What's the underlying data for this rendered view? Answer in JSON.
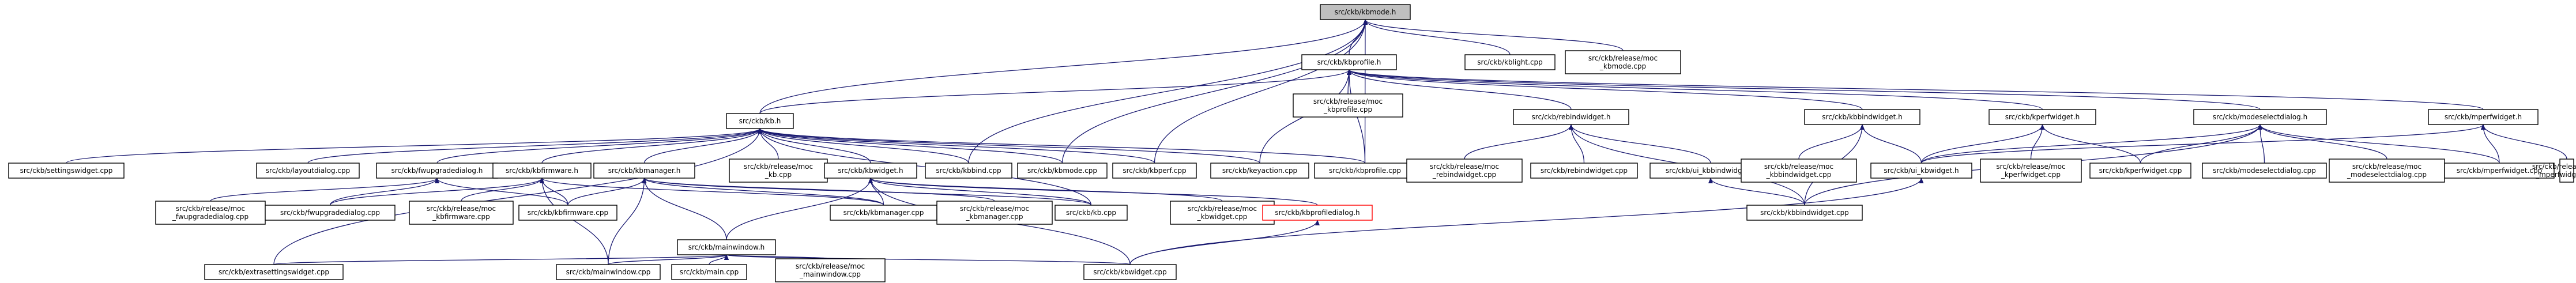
{
  "graph": {
    "edge_color": "#191970",
    "root_fill": "#bfbfbf",
    "missing_border": "#ff0000",
    "nodes": [
      {
        "id": "kbmode_h",
        "lines": [
          "src/ckb/kbmode.h"
        ],
        "root": true
      },
      {
        "id": "kblight_cpp",
        "lines": [
          "src/ckb/kblight.cpp"
        ]
      },
      {
        "id": "moc_kbmode_cpp",
        "lines": [
          "src/ckb/release/moc",
          "_kbmode.cpp"
        ]
      },
      {
        "id": "kbprofile_h",
        "lines": [
          "src/ckb/kbprofile.h"
        ]
      },
      {
        "id": "moc_kbprofile_cpp",
        "lines": [
          "src/ckb/release/moc",
          "_kbprofile.cpp"
        ]
      },
      {
        "id": "kb_h",
        "lines": [
          "src/ckb/kb.h"
        ]
      },
      {
        "id": "rebindwidget_h",
        "lines": [
          "src/ckb/rebindwidget.h"
        ]
      },
      {
        "id": "kbbindwidget_h",
        "lines": [
          "src/ckb/kbbindwidget.h"
        ]
      },
      {
        "id": "kperfwidget_h",
        "lines": [
          "src/ckb/kperfwidget.h"
        ]
      },
      {
        "id": "modeselectdialog_h",
        "lines": [
          "src/ckb/modeselectdialog.h"
        ]
      },
      {
        "id": "mperfwidget_h",
        "lines": [
          "src/ckb/mperfwidget.h"
        ]
      },
      {
        "id": "settingswidget_cpp",
        "lines": [
          "src/ckb/settingswidget.cpp"
        ]
      },
      {
        "id": "layoutdialog_cpp",
        "lines": [
          "src/ckb/layoutdialog.cpp"
        ]
      },
      {
        "id": "fwupgradedialog_h",
        "lines": [
          "src/ckb/fwupgradedialog.h"
        ]
      },
      {
        "id": "kbfirmware_h",
        "lines": [
          "src/ckb/kbfirmware.h"
        ]
      },
      {
        "id": "kbmanager_h",
        "lines": [
          "src/ckb/kbmanager.h"
        ]
      },
      {
        "id": "moc_kb_cpp",
        "lines": [
          "src/ckb/release/moc",
          "_kb.cpp"
        ]
      },
      {
        "id": "kbwidget_h",
        "lines": [
          "src/ckb/kbwidget.h"
        ]
      },
      {
        "id": "kbbind_cpp",
        "lines": [
          "src/ckb/kbbind.cpp"
        ]
      },
      {
        "id": "kbmode_cpp",
        "lines": [
          "src/ckb/kbmode.cpp"
        ]
      },
      {
        "id": "kbperf_cpp",
        "lines": [
          "src/ckb/kbperf.cpp"
        ]
      },
      {
        "id": "keyaction_cpp",
        "lines": [
          "src/ckb/keyaction.cpp"
        ]
      },
      {
        "id": "kbprofile_cpp",
        "lines": [
          "src/ckb/kbprofile.cpp"
        ]
      },
      {
        "id": "moc_rebindwidget_cpp",
        "lines": [
          "src/ckb/release/moc",
          "_rebindwidget.cpp"
        ]
      },
      {
        "id": "rebindwidget_cpp",
        "lines": [
          "src/ckb/rebindwidget.cpp"
        ]
      },
      {
        "id": "ui_kbbindwidget_h",
        "lines": [
          "src/ckb/ui_kbbindwidget.h"
        ]
      },
      {
        "id": "moc_kbbindwidget_cpp",
        "lines": [
          "src/ckb/release/moc",
          "_kbbindwidget.cpp"
        ]
      },
      {
        "id": "ui_kbwidget_h",
        "lines": [
          "src/ckb/ui_kbwidget.h"
        ]
      },
      {
        "id": "moc_kperfwidget_cpp",
        "lines": [
          "src/ckb/release/moc",
          "_kperfwidget.cpp"
        ]
      },
      {
        "id": "kperfwidget_cpp",
        "lines": [
          "src/ckb/kperfwidget.cpp"
        ]
      },
      {
        "id": "modeselectdialog_cpp",
        "lines": [
          "src/ckb/modeselectdialog.cpp"
        ]
      },
      {
        "id": "moc_modeselectdialog_cpp",
        "lines": [
          "src/ckb/release/moc",
          "_modeselectdialog.cpp"
        ]
      },
      {
        "id": "mperfwidget_cpp",
        "lines": [
          "src/ckb/mperfwidget.cpp"
        ]
      },
      {
        "id": "moc_mperfwidget_cpp",
        "lines": [
          "src/ckb/release/moc",
          "_mperfwidget.cpp"
        ]
      },
      {
        "id": "moc_fwupgradedialog_cpp",
        "lines": [
          "src/ckb/release/moc",
          "_fwupgradedialog.cpp"
        ]
      },
      {
        "id": "fwupgradedialog_cpp",
        "lines": [
          "src/ckb/fwupgradedialog.cpp"
        ]
      },
      {
        "id": "moc_kbfirmware_cpp",
        "lines": [
          "src/ckb/release/moc",
          "_kbfirmware.cpp"
        ]
      },
      {
        "id": "kbfirmware_cpp",
        "lines": [
          "src/ckb/kbfirmware.cpp"
        ]
      },
      {
        "id": "kbmanager_cpp",
        "lines": [
          "src/ckb/kbmanager.cpp"
        ]
      },
      {
        "id": "moc_kbmanager_cpp",
        "lines": [
          "src/ckb/release/moc",
          "_kbmanager.cpp"
        ]
      },
      {
        "id": "kb_cpp",
        "lines": [
          "src/ckb/kb.cpp"
        ]
      },
      {
        "id": "moc_kbwidget_cpp",
        "lines": [
          "src/ckb/release/moc",
          "_kbwidget.cpp"
        ]
      },
      {
        "id": "kbprofiledialog_h",
        "lines": [
          "src/ckb/kbprofiledialog.h"
        ],
        "missing": true
      },
      {
        "id": "kbbindwidget_cpp",
        "lines": [
          "src/ckb/kbbindwidget.cpp"
        ]
      },
      {
        "id": "mainwindow_h",
        "lines": [
          "src/ckb/mainwindow.h"
        ]
      },
      {
        "id": "extrasettingswidget_cpp",
        "lines": [
          "src/ckb/extrasettingswidget.cpp"
        ]
      },
      {
        "id": "mainwindow_cpp",
        "lines": [
          "src/ckb/mainwindow.cpp"
        ]
      },
      {
        "id": "main_cpp",
        "lines": [
          "src/ckb/main.cpp"
        ]
      },
      {
        "id": "moc_mainwindow_cpp",
        "lines": [
          "src/ckb/release/moc",
          "_mainwindow.cpp"
        ]
      },
      {
        "id": "kbwidget_cpp",
        "lines": [
          "src/ckb/kbwidget.cpp"
        ]
      }
    ],
    "edges": [
      [
        "kbmode_h",
        "kbprofile_h"
      ],
      [
        "kbmode_h",
        "kblight_cpp"
      ],
      [
        "kbmode_h",
        "moc_kbmode_cpp"
      ],
      [
        "kbmode_h",
        "kbbind_cpp"
      ],
      [
        "kbmode_h",
        "kbmode_cpp"
      ],
      [
        "kbmode_h",
        "kbperf_cpp"
      ],
      [
        "kbmode_h",
        "kb_h"
      ],
      [
        "kbmode_h",
        "kbprofile_cpp"
      ],
      [
        "kbprofile_h",
        "kb_h"
      ],
      [
        "kbprofile_h",
        "moc_kbprofile_cpp"
      ],
      [
        "kbprofile_h",
        "kbprofile_cpp"
      ],
      [
        "kbprofile_h",
        "keyaction_cpp"
      ],
      [
        "kbprofile_h",
        "rebindwidget_h"
      ],
      [
        "kbprofile_h",
        "kbbindwidget_h"
      ],
      [
        "kbprofile_h",
        "kperfwidget_h"
      ],
      [
        "kbprofile_h",
        "modeselectdialog_h"
      ],
      [
        "kbprofile_h",
        "mperfwidget_h"
      ],
      [
        "kb_h",
        "settingswidget_cpp"
      ],
      [
        "kb_h",
        "layoutdialog_cpp"
      ],
      [
        "kb_h",
        "fwupgradedialog_h"
      ],
      [
        "kb_h",
        "kbfirmware_h"
      ],
      [
        "kb_h",
        "kbmanager_h"
      ],
      [
        "kb_h",
        "moc_kb_cpp"
      ],
      [
        "kb_h",
        "kbwidget_h"
      ],
      [
        "kb_h",
        "kbbind_cpp"
      ],
      [
        "kb_h",
        "kbmode_cpp"
      ],
      [
        "kb_h",
        "kbperf_cpp"
      ],
      [
        "kb_h",
        "keyaction_cpp"
      ],
      [
        "kb_h",
        "kbprofile_cpp"
      ],
      [
        "kb_h",
        "kb_cpp"
      ],
      [
        "kb_h",
        "extrasettingswidget_cpp"
      ],
      [
        "fwupgradedialog_h",
        "moc_fwupgradedialog_cpp"
      ],
      [
        "fwupgradedialog_h",
        "fwupgradedialog_cpp"
      ],
      [
        "fwupgradedialog_h",
        "kbfirmware_cpp"
      ],
      [
        "kbfirmware_h",
        "fwupgradedialog_cpp"
      ],
      [
        "kbfirmware_h",
        "moc_kbfirmware_cpp"
      ],
      [
        "kbfirmware_h",
        "kbfirmware_cpp"
      ],
      [
        "kbfirmware_h",
        "kbmanager_cpp"
      ],
      [
        "kbfirmware_h",
        "mainwindow_cpp"
      ],
      [
        "kbmanager_h",
        "kbfirmware_cpp"
      ],
      [
        "kbmanager_h",
        "kbmanager_cpp"
      ],
      [
        "kbmanager_h",
        "moc_kbmanager_cpp"
      ],
      [
        "kbmanager_h",
        "mainwindow_h"
      ],
      [
        "kbmanager_h",
        "kb_cpp"
      ],
      [
        "kbmanager_h",
        "mainwindow_cpp"
      ],
      [
        "kbwidget_h",
        "mainwindow_h"
      ],
      [
        "kbwidget_h",
        "kbwidget_cpp"
      ],
      [
        "kbwidget_h",
        "moc_kbwidget_cpp"
      ],
      [
        "kbwidget_h",
        "kb_cpp"
      ],
      [
        "kbwidget_h",
        "kbprofiledialog_h"
      ],
      [
        "kbwidget_h",
        "kbmanager_cpp"
      ],
      [
        "mainwindow_h",
        "extrasettingswidget_cpp"
      ],
      [
        "mainwindow_h",
        "mainwindow_cpp"
      ],
      [
        "mainwindow_h",
        "main_cpp"
      ],
      [
        "mainwindow_h",
        "moc_mainwindow_cpp"
      ],
      [
        "mainwindow_h",
        "kbwidget_cpp"
      ],
      [
        "kbprofiledialog_h",
        "kbwidget_cpp"
      ],
      [
        "rebindwidget_h",
        "moc_rebindwidget_cpp"
      ],
      [
        "rebindwidget_h",
        "rebindwidget_cpp"
      ],
      [
        "rebindwidget_h",
        "ui_kbbindwidget_h"
      ],
      [
        "rebindwidget_h",
        "kbbindwidget_cpp"
      ],
      [
        "ui_kbbindwidget_h",
        "kbbindwidget_cpp"
      ],
      [
        "kbbindwidget_h",
        "moc_kbbindwidget_cpp"
      ],
      [
        "kbbindwidget_h",
        "ui_kbwidget_h"
      ],
      [
        "kbbindwidget_h",
        "kbbindwidget_cpp"
      ],
      [
        "ui_kbwidget_h",
        "kbwidget_cpp"
      ],
      [
        "kperfwidget_h",
        "moc_kperfwidget_cpp"
      ],
      [
        "kperfwidget_h",
        "kperfwidget_cpp"
      ],
      [
        "kperfwidget_h",
        "ui_kbwidget_h"
      ],
      [
        "modeselectdialog_h",
        "modeselectdialog_cpp"
      ],
      [
        "modeselectdialog_h",
        "moc_modeselectdialog_cpp"
      ],
      [
        "modeselectdialog_h",
        "kbbindwidget_cpp"
      ],
      [
        "modeselectdialog_h",
        "kperfwidget_cpp"
      ],
      [
        "modeselectdialog_h",
        "mperfwidget_cpp"
      ],
      [
        "modeselectdialog_h",
        "ui_kbwidget_h"
      ],
      [
        "mperfwidget_h",
        "moc_mperfwidget_cpp"
      ],
      [
        "mperfwidget_h",
        "mperfwidget_cpp"
      ],
      [
        "mperfwidget_h",
        "ui_kbwidget_h"
      ]
    ]
  }
}
